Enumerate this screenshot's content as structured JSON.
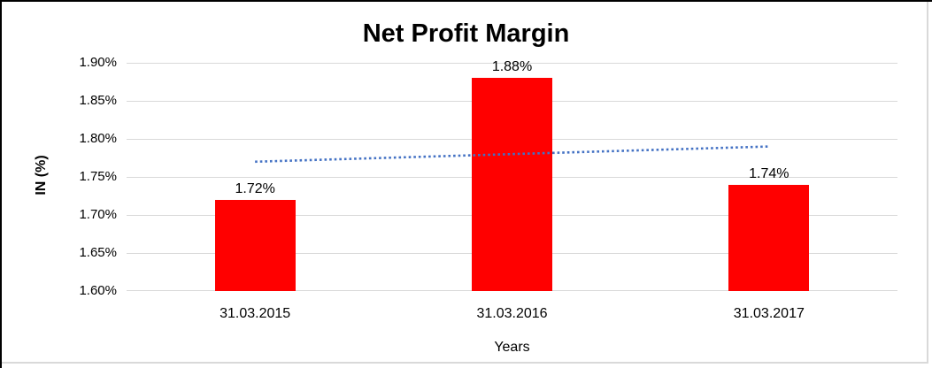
{
  "chart": {
    "title": "Net Profit Margin",
    "y_axis_title": "IN (%)",
    "x_axis_title": "Years"
  },
  "chart_data": {
    "type": "bar",
    "title": "Net Profit Margin",
    "categories": [
      "31.03.2015",
      "31.03.2016",
      "31.03.2017"
    ],
    "values": [
      1.72,
      1.88,
      1.74
    ],
    "data_labels": [
      "1.72%",
      "1.88%",
      "1.74%"
    ],
    "xlabel": "Years",
    "ylabel": "IN (%)",
    "ylim": [
      1.6,
      1.9
    ],
    "ytick_step": 0.05,
    "ytick_labels": [
      "1.90%",
      "1.85%",
      "1.80%",
      "1.75%",
      "1.70%",
      "1.65%",
      "1.60%"
    ],
    "grid": true,
    "legend": false,
    "bar_color": "#ff0000",
    "gridline_color": "#d9d9d9",
    "trendline": {
      "type": "linear",
      "style": "dotted",
      "color": "#4472c4",
      "start_value": 1.77,
      "end_value": 1.79
    }
  }
}
